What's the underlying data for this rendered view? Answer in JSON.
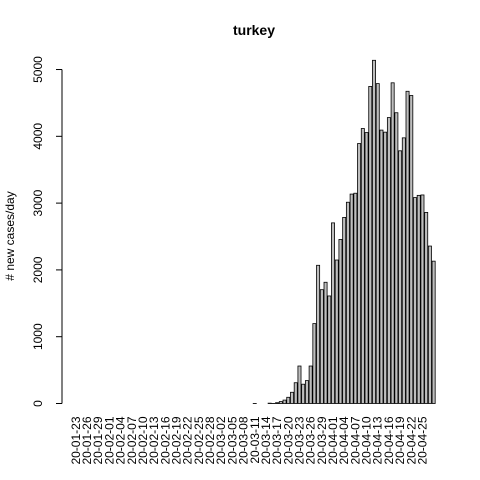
{
  "chart_data": {
    "type": "bar",
    "title": "turkey",
    "xlabel": "",
    "ylabel": "# new cases/day",
    "ylim": [
      0,
      5150
    ],
    "yticks": [
      0,
      1000,
      2000,
      3000,
      4000,
      5000
    ],
    "start_date": "2020-01-23",
    "tick_labels": [
      "20-01-23",
      "20-01-26",
      "20-01-29",
      "20-02-01",
      "20-02-04",
      "20-02-07",
      "20-02-10",
      "20-02-13",
      "20-02-16",
      "20-02-19",
      "20-02-22",
      "20-02-25",
      "20-02-28",
      "20-03-02",
      "20-03-05",
      "20-03-08",
      "20-03-11",
      "20-03-14",
      "20-03-17",
      "20-03-20",
      "20-03-23",
      "20-03-26",
      "20-03-29",
      "20-04-01",
      "20-04-04",
      "20-04-07",
      "20-04-10",
      "20-04-13",
      "20-04-16",
      "20-04-19",
      "20-04-22",
      "20-04-25"
    ],
    "values": [
      0,
      0,
      0,
      0,
      0,
      0,
      0,
      0,
      0,
      0,
      0,
      0,
      0,
      0,
      0,
      0,
      0,
      0,
      0,
      0,
      0,
      0,
      0,
      0,
      0,
      0,
      0,
      0,
      0,
      0,
      0,
      0,
      0,
      0,
      0,
      0,
      0,
      0,
      0,
      0,
      0,
      0,
      0,
      0,
      0,
      0,
      0,
      0,
      1,
      0,
      0,
      0,
      5,
      1,
      12,
      29,
      51,
      93,
      168,
      311,
      561,
      289,
      343,
      561,
      1196,
      2069,
      1704,
      1815,
      1610,
      2704,
      2148,
      2456,
      2786,
      3013,
      3135,
      3148,
      3892,
      4117,
      4056,
      4747,
      5138,
      4789,
      4093,
      4062,
      4281,
      4801,
      4353,
      3783,
      3977,
      4674,
      4611,
      3083,
      3116,
      3122,
      2861,
      2357,
      2131
    ]
  }
}
